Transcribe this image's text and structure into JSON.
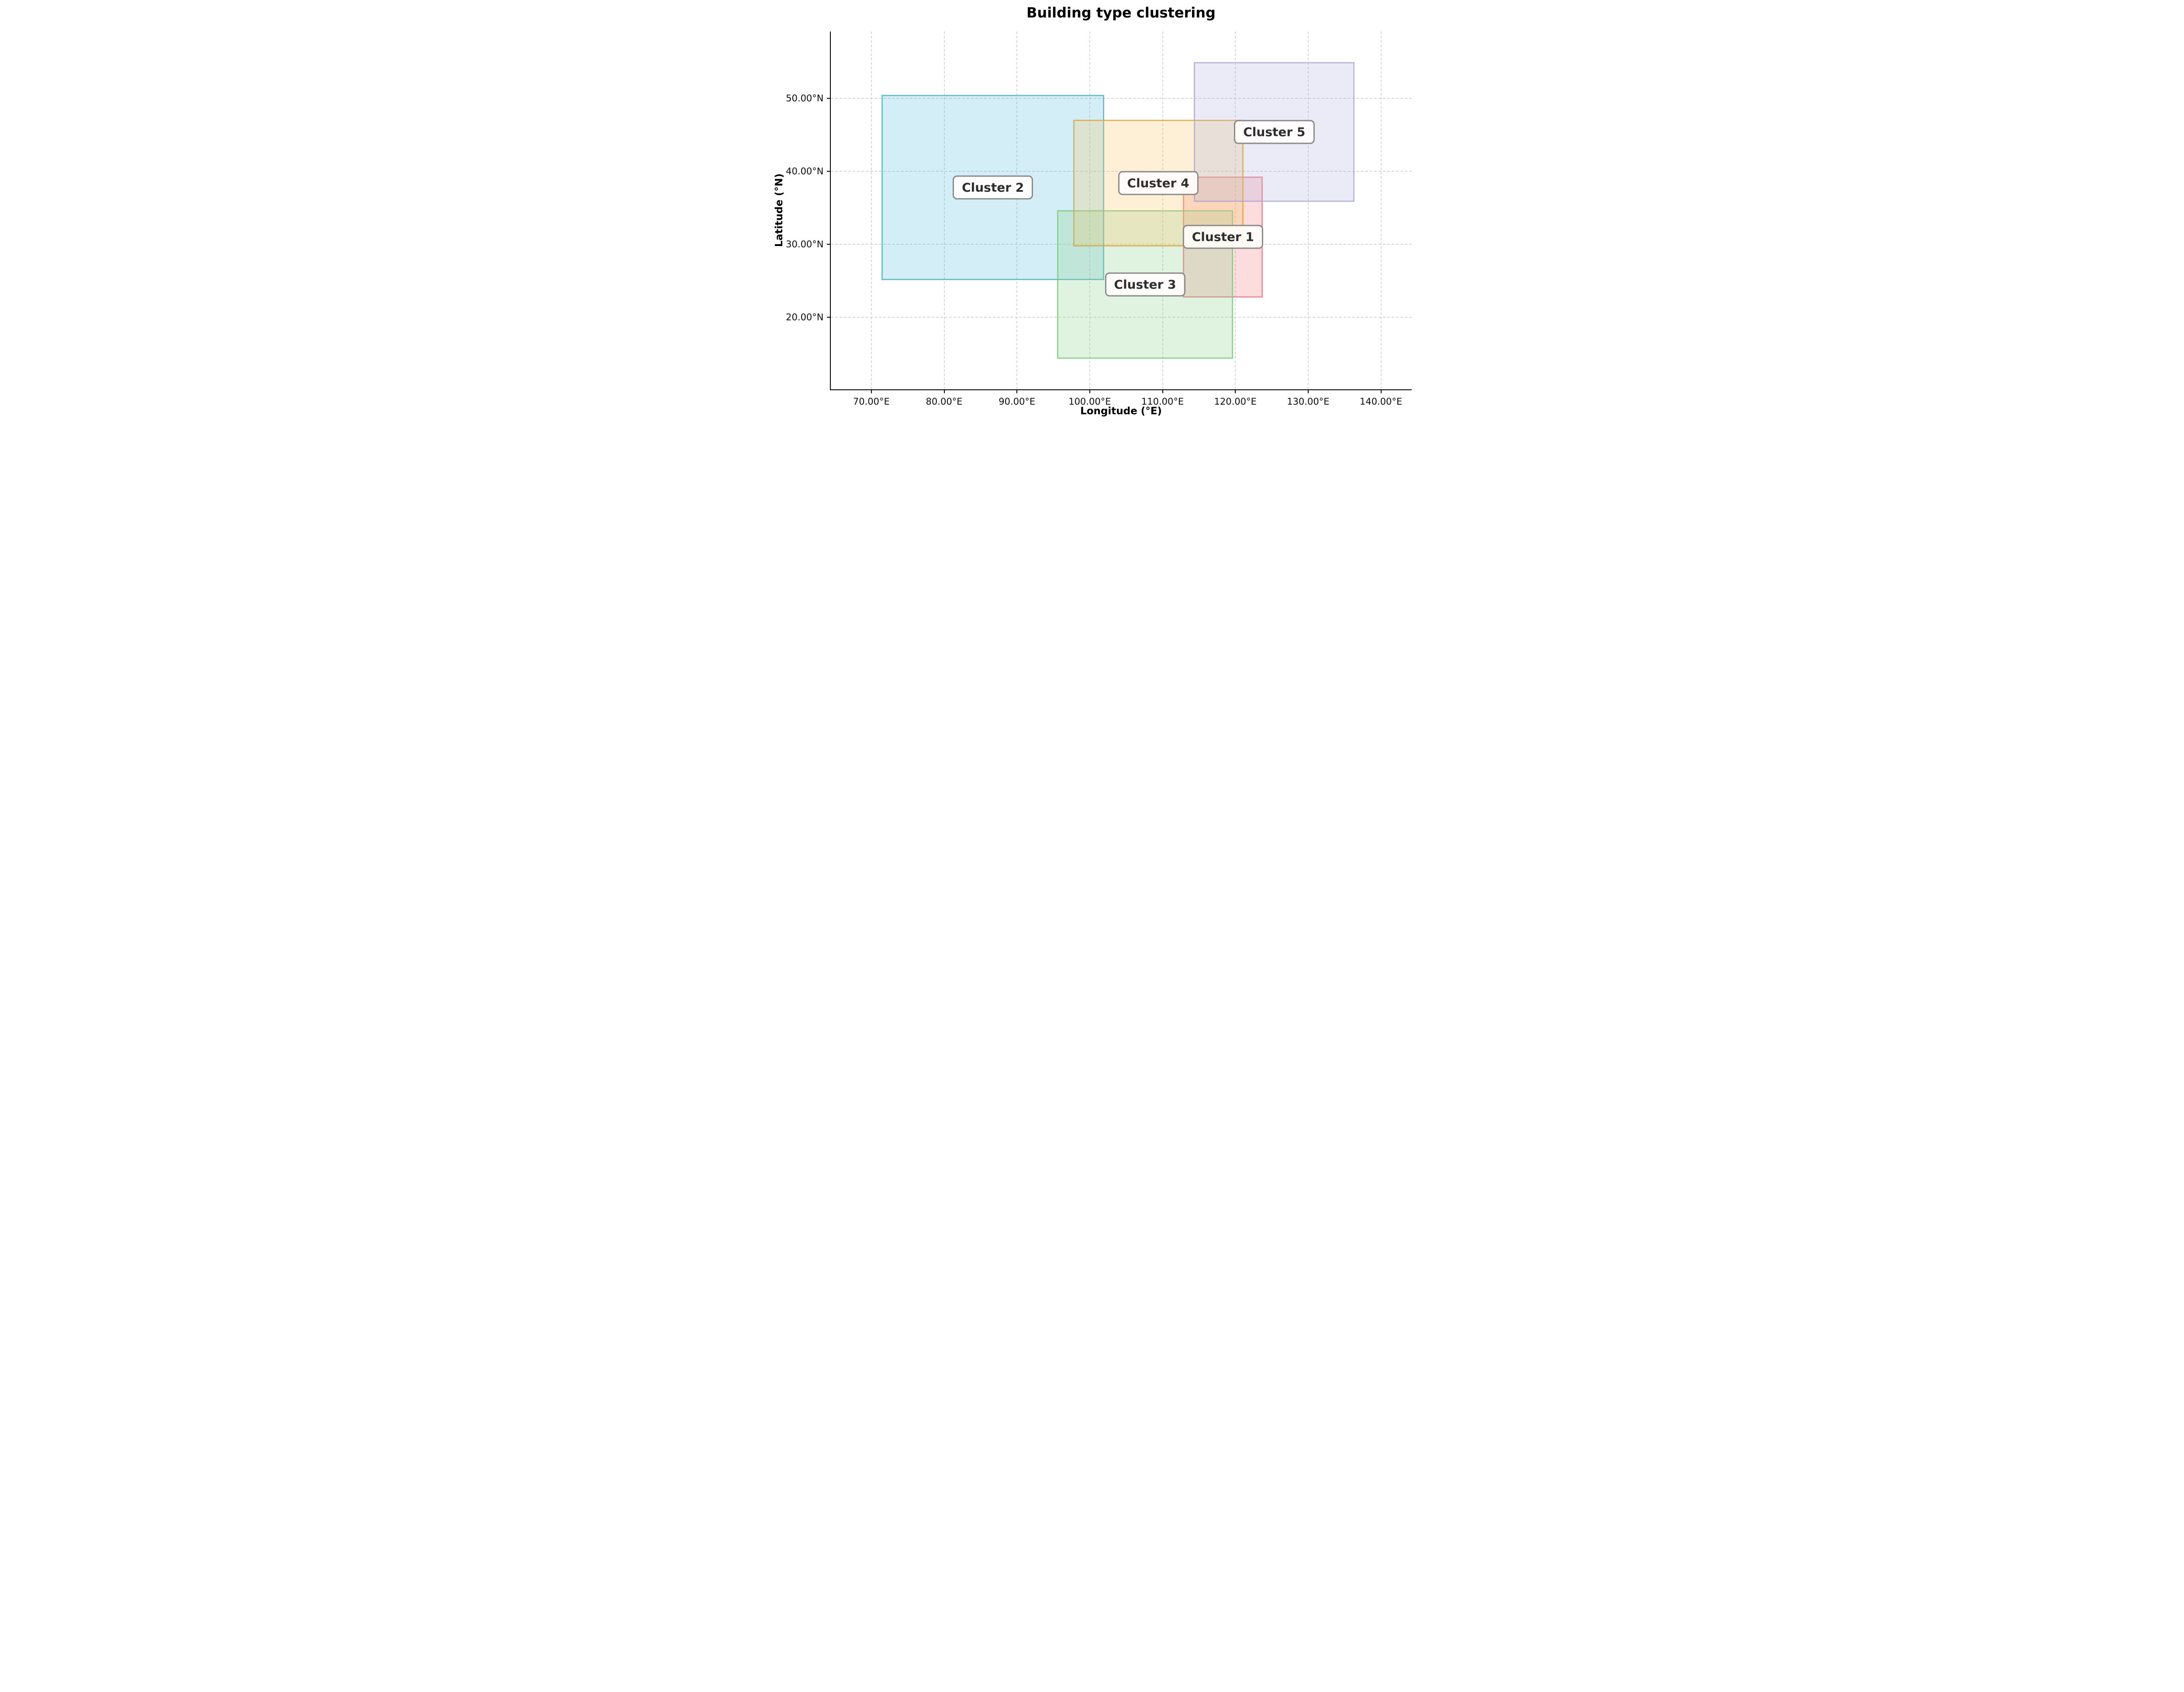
{
  "title": "Building type clustering",
  "chart_data": {
    "type": "rect-regions",
    "title": "Building type clustering",
    "xlabel": "Longitude (°E)",
    "ylabel": "Latitude (°N)",
    "xlim": [
      64.4,
      144.2
    ],
    "ylim": [
      10.1,
      59.2
    ],
    "x_ticks": [
      {
        "value": 70,
        "label": "70.00°E"
      },
      {
        "value": 80,
        "label": "80.00°E"
      },
      {
        "value": 90,
        "label": "90.00°E"
      },
      {
        "value": 100,
        "label": "100.00°E"
      },
      {
        "value": 110,
        "label": "110.00°E"
      },
      {
        "value": 120,
        "label": "120.00°E"
      },
      {
        "value": 130,
        "label": "130.00°E"
      },
      {
        "value": 140,
        "label": "140.00°E"
      }
    ],
    "y_ticks": [
      {
        "value": 20,
        "label": "20.00°N"
      },
      {
        "value": 30,
        "label": "30.00°N"
      },
      {
        "value": 40,
        "label": "40.00°N"
      },
      {
        "value": 50,
        "label": "50.00°N"
      }
    ],
    "grid": {
      "visible": true,
      "style": "dashed",
      "color": "#d6d6d6"
    },
    "legend": "none",
    "spines": {
      "left": true,
      "bottom": true,
      "top": false,
      "right": false
    },
    "clusters": [
      {
        "name": "Cluster 1",
        "lon_min": 112.8,
        "lon_max": 123.8,
        "lat_min": 22.7,
        "lat_max": 39.3,
        "fill": "rgba(243,115,115,0.25)",
        "edge": "rgba(231,122,133,0.72)"
      },
      {
        "name": "Cluster 2",
        "lon_min": 71.4,
        "lon_max": 102.0,
        "lat_min": 25.1,
        "lat_max": 50.5,
        "fill": "rgba(79,187,219,0.25)",
        "edge": "rgba(73,175,195,0.72)"
      },
      {
        "name": "Cluster 3",
        "lon_min": 95.5,
        "lon_max": 119.7,
        "lat_min": 14.3,
        "lat_max": 34.7,
        "fill": "rgba(131,207,131,0.25)",
        "edge": "rgba(123,197,126,0.72)"
      },
      {
        "name": "Cluster 4",
        "lon_min": 97.7,
        "lon_max": 121.1,
        "lat_min": 29.7,
        "lat_max": 47.1,
        "fill": "rgba(247,195,95,0.25)",
        "edge": "rgba(221,161,54,0.72)"
      },
      {
        "name": "Cluster 5",
        "lon_min": 114.3,
        "lon_max": 136.4,
        "lat_min": 35.8,
        "lat_max": 55.0,
        "fill": "rgba(171,175,219,0.25)",
        "edge": "rgba(172,164,210,0.72)"
      }
    ],
    "label_style": {
      "text_color": "#2e2e2e",
      "box_fill": "rgba(255,253,252,0.92)",
      "box_edge": "#8a8a8a"
    }
  }
}
